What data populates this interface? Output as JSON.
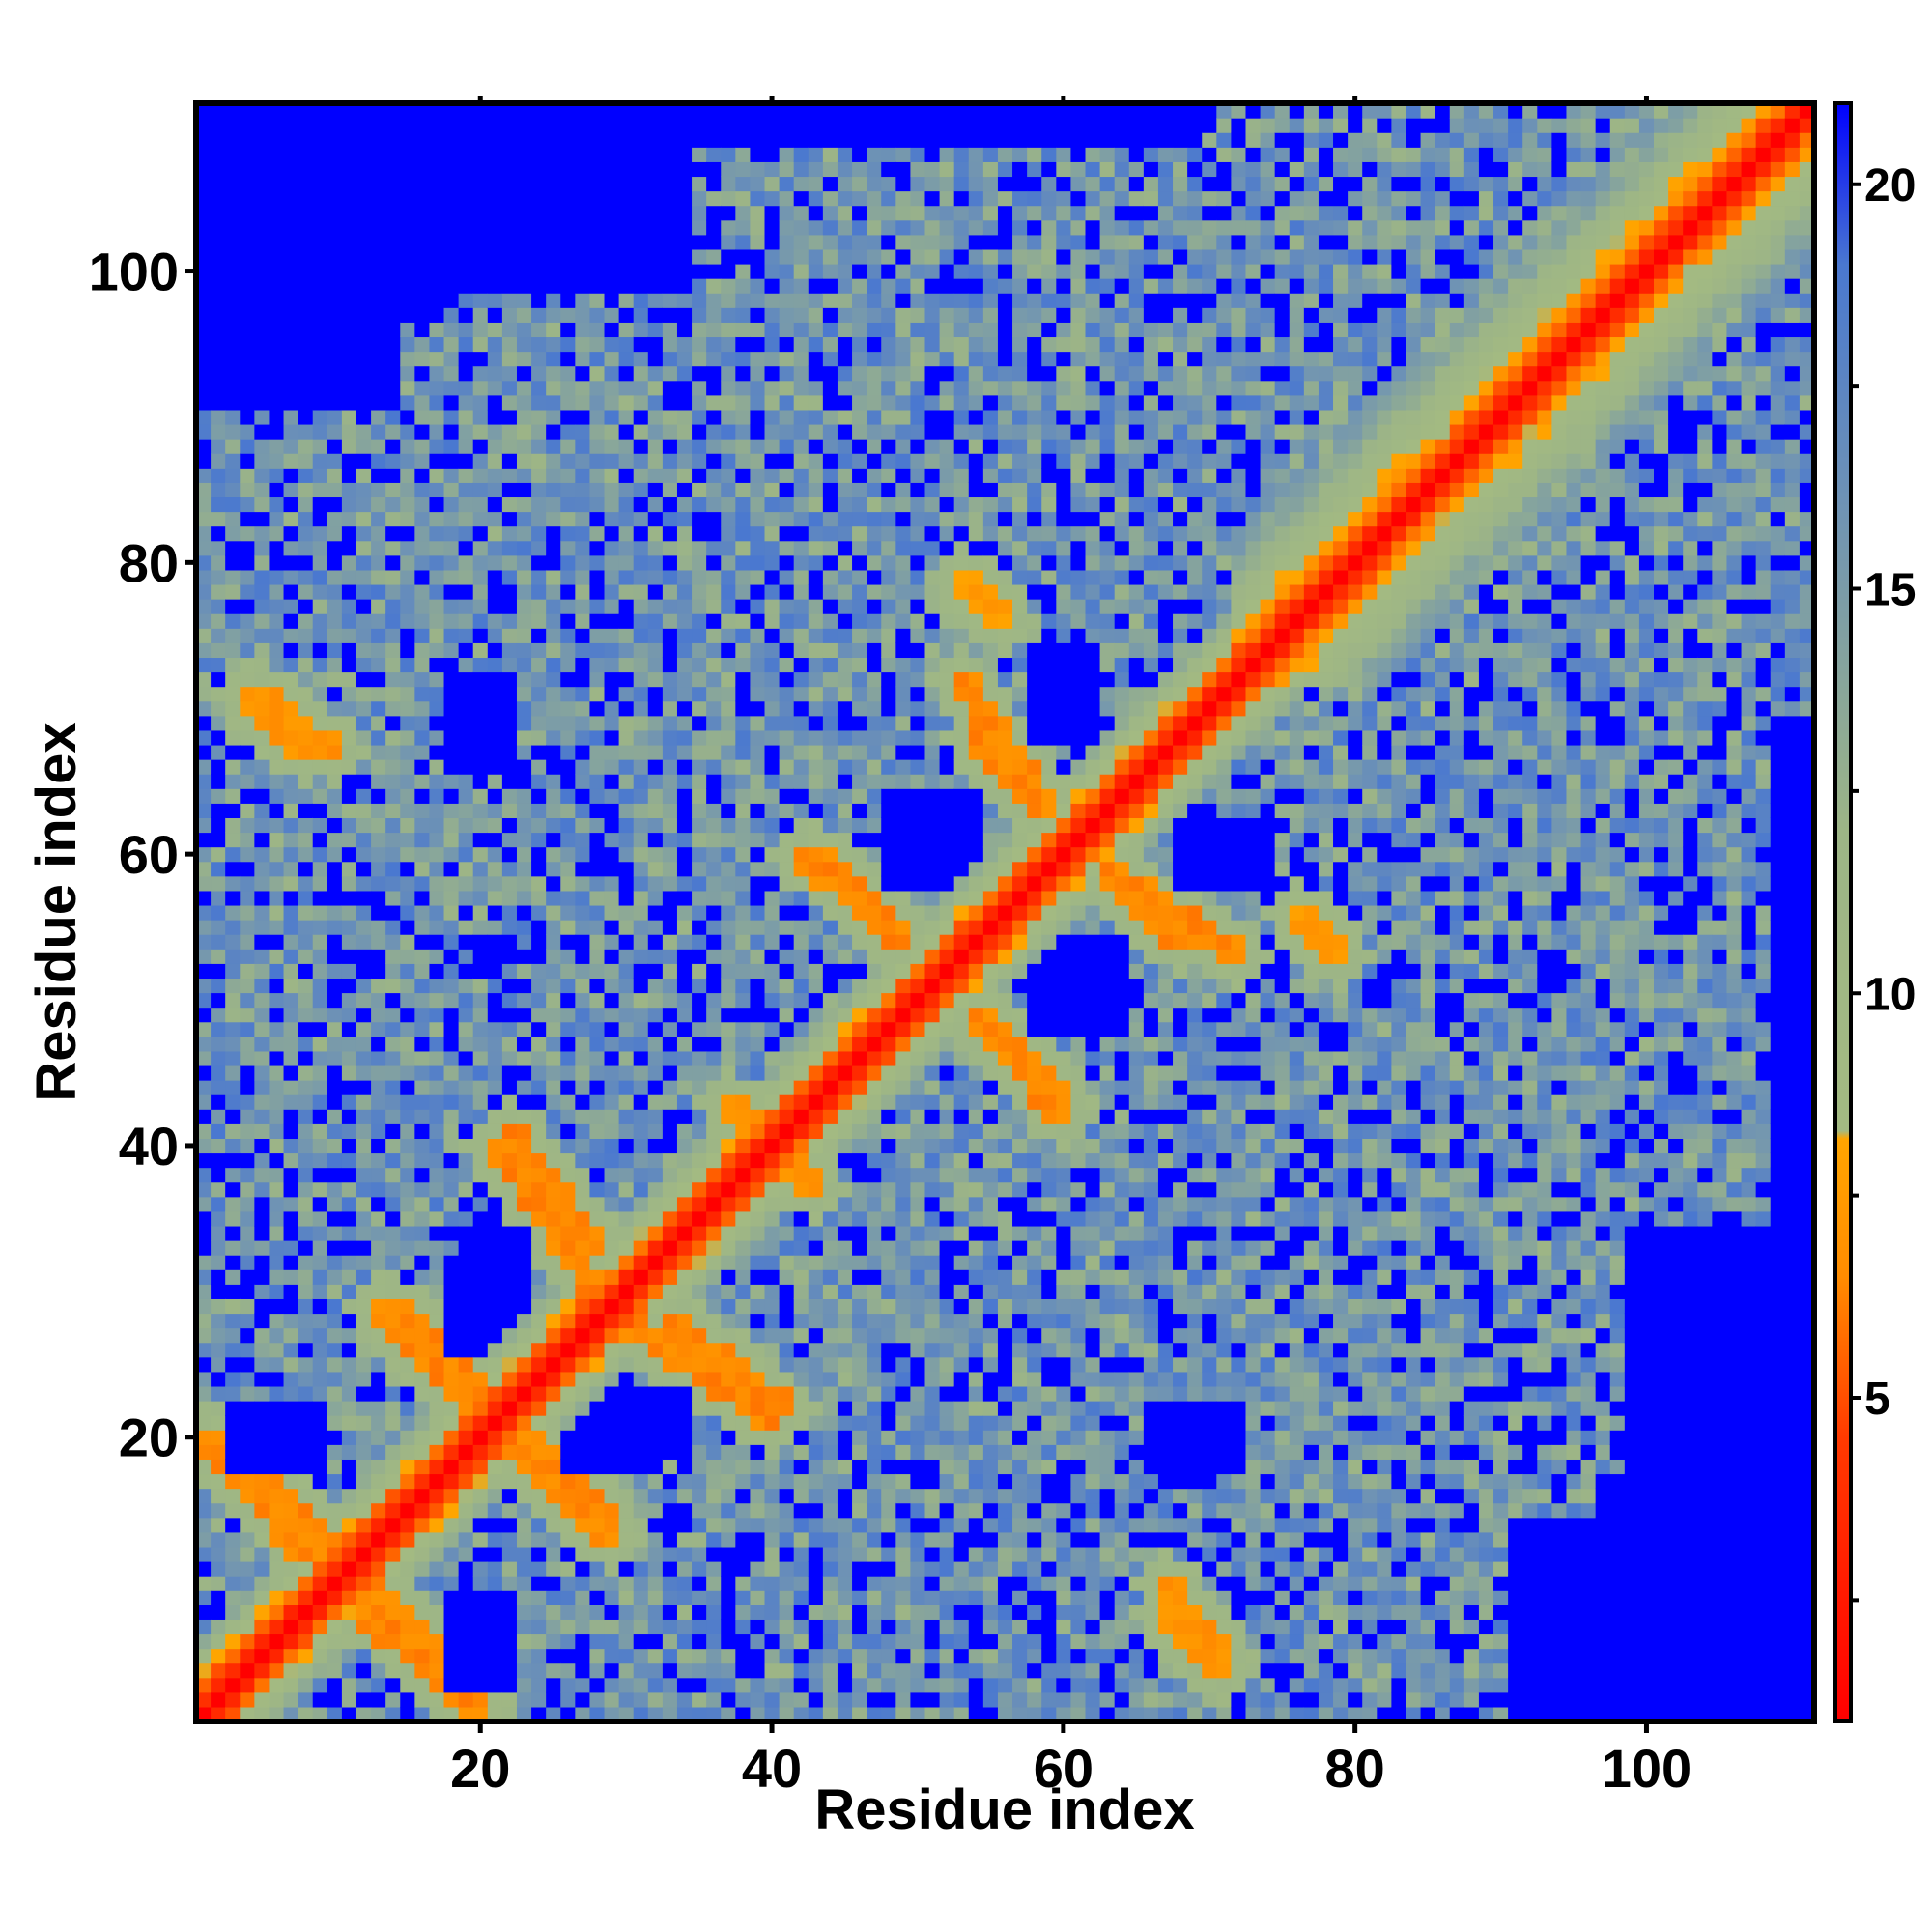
{
  "chart_data": {
    "type": "heatmap",
    "title": "",
    "xlabel": "Residue index",
    "ylabel": "Residue index",
    "n_residues": 111,
    "xlim": [
      1,
      111
    ],
    "ylim": [
      1,
      111
    ],
    "x_ticks": [
      20,
      40,
      60,
      80,
      100
    ],
    "y_ticks": [
      20,
      40,
      60,
      80,
      100
    ],
    "colorbar": {
      "ticks": [
        5,
        10,
        15,
        20
      ],
      "range": [
        1,
        21
      ],
      "position": "right",
      "colors": [
        {
          "value": 1,
          "color": "#ff0000"
        },
        {
          "value": 4.5,
          "color": "#ff3a00"
        },
        {
          "value": 6.5,
          "color": "#ff8c00"
        },
        {
          "value": 8.2,
          "color": "#ffa500"
        },
        {
          "value": 8.3,
          "color": "#a3ba82"
        },
        {
          "value": 12,
          "color": "#9db586"
        },
        {
          "value": 16,
          "color": "#6f93b4"
        },
        {
          "value": 19,
          "color": "#4a78d0"
        },
        {
          "value": 21,
          "color": "#0000ff"
        }
      ]
    },
    "structure": {
      "diagonal_value": 1,
      "background_value": 21,
      "near_diagonal_band": [
        {
          "offset": 1,
          "value": 3.5
        },
        {
          "offset": 2,
          "value": 5.5
        },
        {
          "offset": 3,
          "value": 8.5
        },
        {
          "offset": 4,
          "value": 11
        },
        {
          "offset": 5,
          "value": 13
        }
      ],
      "helix_segments": [
        [
          72,
          111
        ]
      ],
      "contact_arms": [
        {
          "from": [
            2,
            20
          ],
          "to": [
            10,
            12
          ],
          "value": 6.5
        },
        {
          "from": [
            12,
            8
          ],
          "to": [
            20,
            1
          ],
          "value": 6.5
        },
        {
          "from": [
            14,
            29
          ],
          "to": [
            20,
            23
          ],
          "value": 6.5
        },
        {
          "from": [
            22,
            20
          ],
          "to": [
            29,
            13
          ],
          "value": 6.5
        },
        {
          "from": [
            22,
            41
          ],
          "to": [
            28,
            33
          ],
          "value": 6.5
        },
        {
          "from": [
            30,
            28
          ],
          "to": [
            40,
            21
          ],
          "value": 6.5
        },
        {
          "from": [
            43,
            60
          ],
          "to": [
            48,
            55
          ],
          "value": 6.5
        },
        {
          "from": [
            54,
            49
          ],
          "to": [
            60,
            42
          ],
          "value": 6.5
        },
        {
          "from": [
            54,
            68
          ],
          "to": [
            59,
            63
          ],
          "value": 6.5
        },
        {
          "from": [
            63,
            59
          ],
          "to": [
            72,
            53
          ],
          "value": 6.5
        },
        {
          "from": [
            5,
            71
          ],
          "to": [
            10,
            67
          ],
          "value": 7
        },
        {
          "from": [
            67,
            8
          ],
          "to": [
            71,
            4
          ],
          "value": 7
        },
        {
          "from": [
            76,
            56
          ],
          "to": [
            79,
            53
          ],
          "value": 7.5
        },
        {
          "from": [
            37,
            43
          ],
          "to": [
            43,
            37
          ],
          "value": 7
        }
      ],
      "contact_clusters": [
        {
          "x": [
            1,
            45
          ],
          "y": [
            1,
            45
          ]
        },
        {
          "x": [
            1,
            32
          ],
          "y": [
            48,
            90
          ]
        },
        {
          "x": [
            18,
            45
          ],
          "y": [
            40,
            98
          ]
        },
        {
          "x": [
            35,
            70
          ],
          "y": [
            38,
            108
          ]
        },
        {
          "x": [
            44,
            90
          ],
          "y": [
            1,
            40
          ]
        },
        {
          "x": [
            40,
            95
          ],
          "y": [
            35,
            72
          ]
        },
        {
          "x": [
            70,
            111
          ],
          "y": [
            72,
            111
          ]
        },
        {
          "x": [
            60,
            84
          ],
          "y": [
            1,
            18
          ]
        },
        {
          "x": [
            72,
            96
          ],
          "y": [
            15,
            60
          ]
        }
      ],
      "holes": [
        {
          "x": [
            48,
            54
          ],
          "y": [
            58,
            64
          ]
        },
        {
          "x": [
            58,
            64
          ],
          "y": [
            48,
            54
          ]
        },
        {
          "x": [
            26,
            32
          ],
          "y": [
            18,
            23
          ]
        },
        {
          "x": [
            19,
            23
          ],
          "y": [
            30,
            34
          ]
        },
        {
          "x": [
            18,
            22
          ],
          "y": [
            3,
            8
          ]
        },
        {
          "x": [
            5,
            9
          ],
          "y": [
            18,
            22
          ]
        },
        {
          "x": [
            68,
            74
          ],
          "y": [
            58,
            62
          ]
        },
        {
          "x": [
            66,
            72
          ],
          "y": [
            18,
            22
          ]
        }
      ]
    }
  }
}
